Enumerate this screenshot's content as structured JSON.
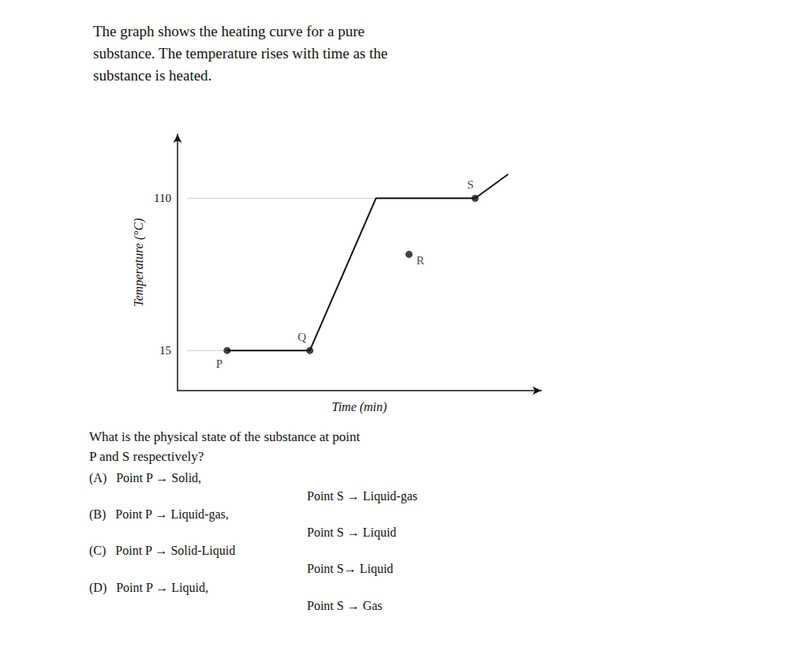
{
  "chart_data": {
    "type": "line",
    "title": "The graph shows the heating curve for a pure\nsubstance. The temperature rises with time as the\nsubstance is heated.",
    "xlabel": "Time (min)",
    "ylabel": "Temperature (°C)",
    "xlim": [
      0,
      11.0
    ],
    "ylim": [
      -10,
      150
    ],
    "xticks": [],
    "yticks": [
      15,
      110
    ],
    "tick_labels": "y",
    "grid": false,
    "series": [
      {
        "type": "line",
        "line_style": "solid",
        "color": "#111111",
        "x": [
          1.5,
          2.5,
          4.0,
          6.0,
          7.5,
          9.0,
          10.0
        ],
        "values": [
          15,
          15,
          15,
          110,
          110,
          110,
          125
        ]
      },
      {
        "type": "line",
        "line_style": "dotted",
        "color": "#999999",
        "x": [
          0.3,
          4.0
        ],
        "values": [
          15,
          15
        ]
      },
      {
        "type": "line",
        "line_style": "dotted",
        "color": "#999999",
        "x": [
          0.3,
          9.0
        ],
        "values": [
          110,
          110
        ]
      },
      {
        "type": "scatter",
        "marker": "circle",
        "color": "#111111",
        "x": [
          1.5,
          4.0,
          7.0,
          9.0
        ],
        "values": [
          15,
          15,
          75,
          110
        ],
        "labels": [
          "P",
          "Q",
          "R",
          "S"
        ]
      }
    ],
    "annotations": [
      "What is the physical state of the substance at point",
      "P and S respectively?",
      "(A)   Point P → Solid,",
      "Point S → Liquid-gas",
      "(B)   Point P → Liquid-gas,",
      "Point S → Liquid",
      "(C)   Point P → Solid-Liquid",
      "Point S→ Liquid",
      "(D)   Point P → Liquid,",
      "Point S → Gas"
    ]
  }
}
